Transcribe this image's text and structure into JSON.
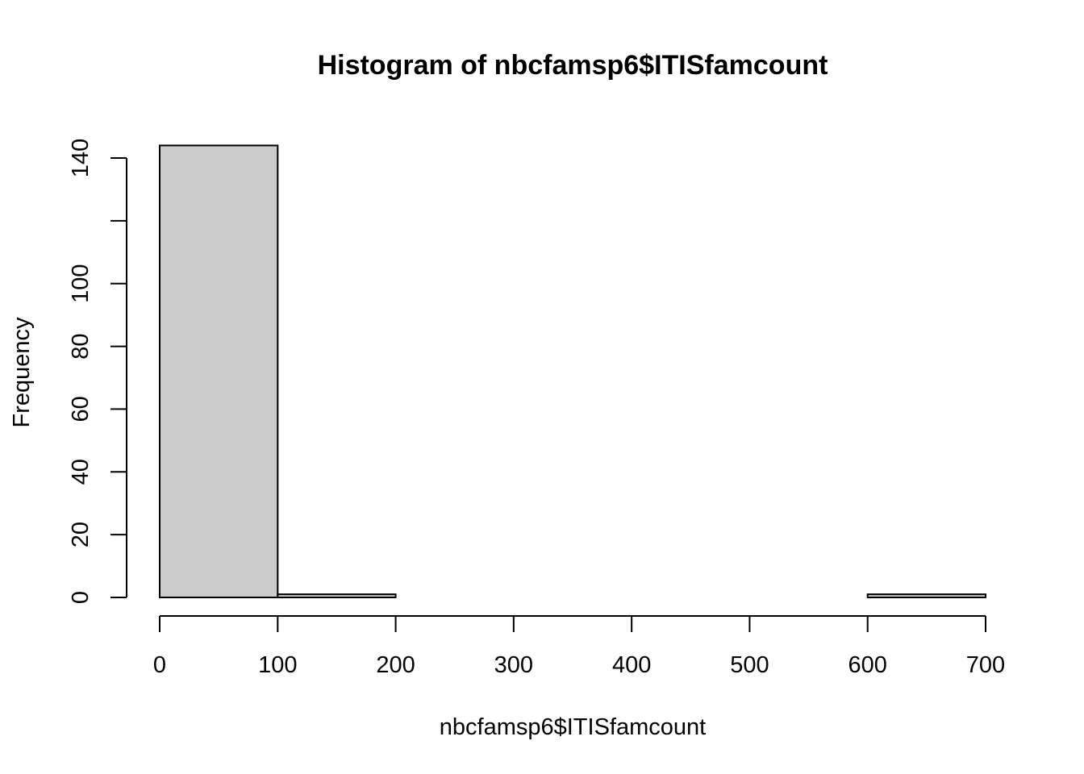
{
  "chart_data": {
    "type": "bar",
    "title": "Histogram of nbcfamsp6$ITISfamcount",
    "xlabel": "nbcfamsp6$ITISfamcount",
    "ylabel": "Frequency",
    "bins": [
      {
        "from": 0,
        "to": 100,
        "count": 144
      },
      {
        "from": 100,
        "to": 200,
        "count": 1
      },
      {
        "from": 200,
        "to": 300,
        "count": 0
      },
      {
        "from": 300,
        "to": 400,
        "count": 0
      },
      {
        "from": 400,
        "to": 500,
        "count": 0
      },
      {
        "from": 500,
        "to": 600,
        "count": 0
      },
      {
        "from": 600,
        "to": 700,
        "count": 1
      }
    ],
    "xticks": [
      0,
      100,
      200,
      300,
      400,
      500,
      600,
      700
    ],
    "yticks": [
      0,
      20,
      40,
      60,
      80,
      100,
      120,
      140
    ],
    "yticklabels": [
      "0",
      "20",
      "40",
      "60",
      "80",
      "100",
      "",
      "140"
    ],
    "xlim": [
      0,
      700
    ],
    "ylim": [
      0,
      140
    ],
    "bar_color": "#cbcbcb",
    "grid": false
  }
}
